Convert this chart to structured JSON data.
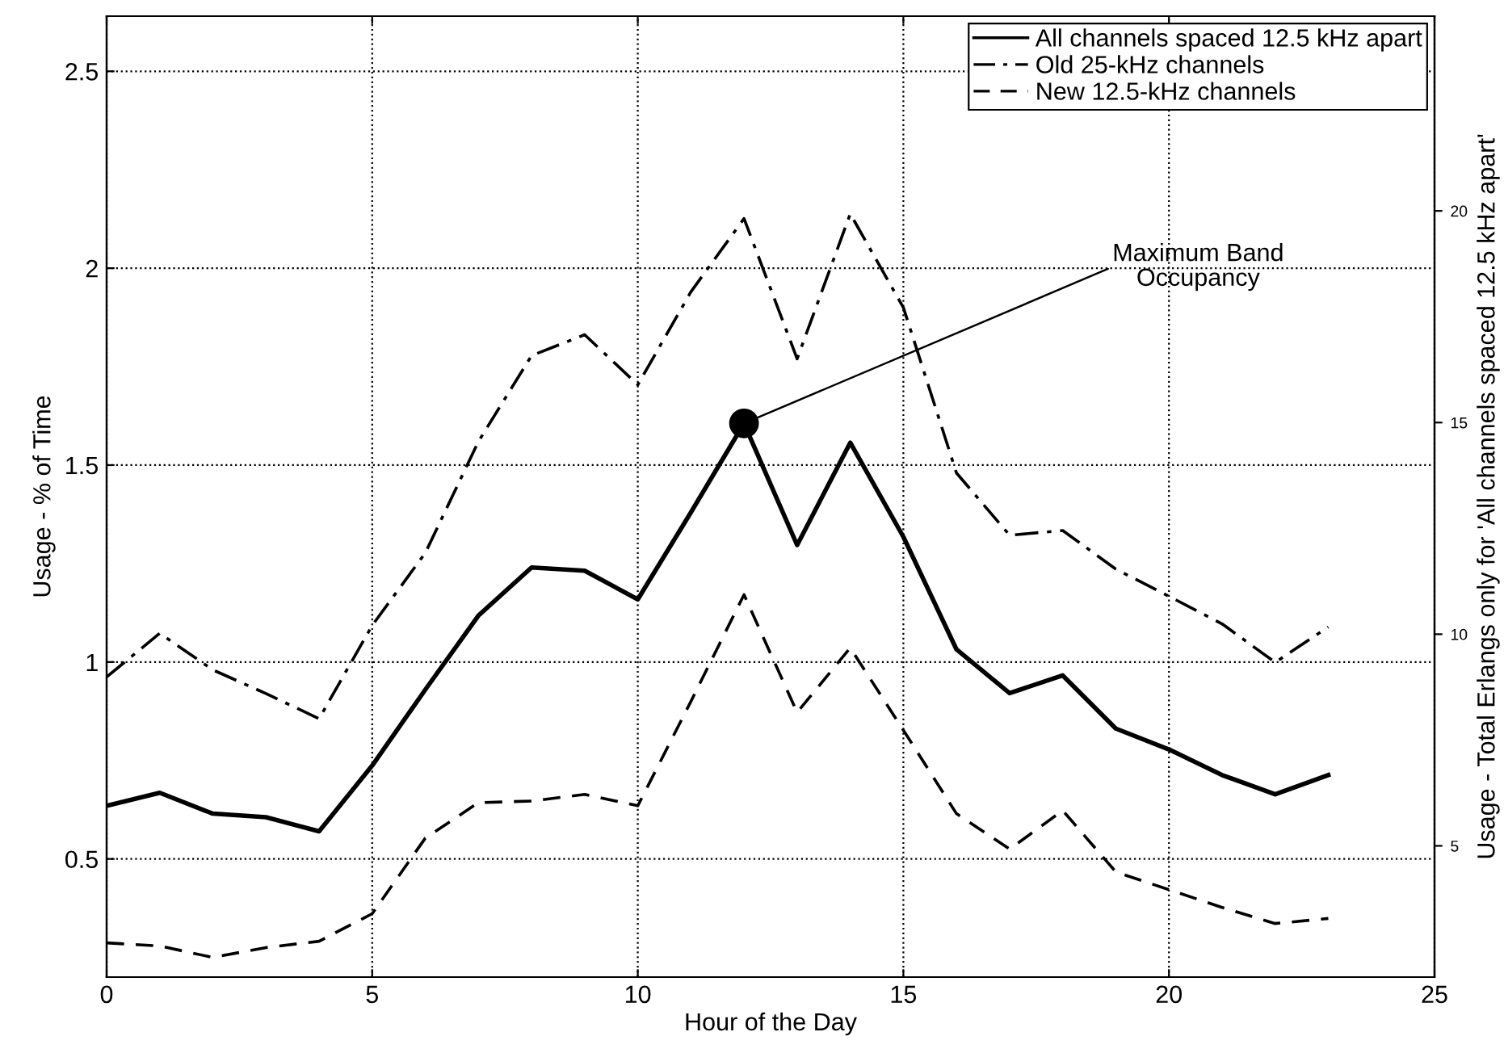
{
  "chart_data": {
    "type": "line",
    "xlabel": "Hour of the Day",
    "ylabel": "Usage - % of Time",
    "y2label": "Usage - Total Erlangs only for 'All channels spaced 12.5 kHz apart'",
    "x": [
      0,
      1,
      2,
      3,
      4,
      5,
      6,
      7,
      8,
      9,
      10,
      11,
      12,
      13,
      14,
      15,
      16,
      17,
      18,
      19,
      20,
      21,
      22,
      23
    ],
    "series": [
      {
        "name": "All channels spaced 12.5 kHz apart",
        "color": "#000000",
        "line_style": "solid",
        "values": [
          0.635,
          0.668,
          0.615,
          0.606,
          0.57,
          0.737,
          0.93,
          1.118,
          1.24,
          1.232,
          1.159,
          1.38,
          1.606,
          1.297,
          1.557,
          1.318,
          1.032,
          0.921,
          0.966,
          0.831,
          0.778,
          0.713,
          0.664,
          0.713
        ]
      },
      {
        "name": "Old 25-kHz channels",
        "color": "#000000",
        "line_style": "dashdot",
        "values": [
          0.962,
          1.073,
          0.98,
          0.92,
          0.856,
          1.093,
          1.277,
          1.56,
          1.778,
          1.831,
          1.704,
          1.94,
          2.126,
          1.77,
          2.138,
          1.9,
          1.48,
          1.322,
          1.334,
          1.236,
          1.167,
          1.097,
          0.999,
          1.089
        ]
      },
      {
        "name": "New 12.5-kHz channels",
        "color": "#000000",
        "line_style": "dashed",
        "values": [
          0.287,
          0.279,
          0.25,
          0.275,
          0.291,
          0.361,
          0.553,
          0.643,
          0.647,
          0.664,
          0.635,
          0.9,
          1.171,
          0.872,
          1.036,
          0.827,
          0.615,
          0.525,
          0.623,
          0.467,
          0.422,
          0.377,
          0.336,
          0.349
        ]
      },
      {
        "type": "scatter",
        "color": "#000000",
        "marker": "circle",
        "x": [
          12
        ],
        "values": [
          1.606
        ]
      }
    ],
    "annotations": [
      {
        "text": "Maximum Band\nOccupancy",
        "x": 12,
        "y": 1.606
      }
    ],
    "xlim": [
      0,
      25
    ],
    "xticks": [
      0,
      5,
      10,
      15,
      20,
      25
    ],
    "ylim": [
      0.2,
      2.64
    ],
    "yticks": [
      0.5,
      1,
      1.5,
      2,
      2.5
    ],
    "y2lim": [
      1.9,
      24.6
    ],
    "y2ticks": [
      5,
      10,
      15,
      20
    ],
    "grid": true,
    "legend": "top right"
  }
}
